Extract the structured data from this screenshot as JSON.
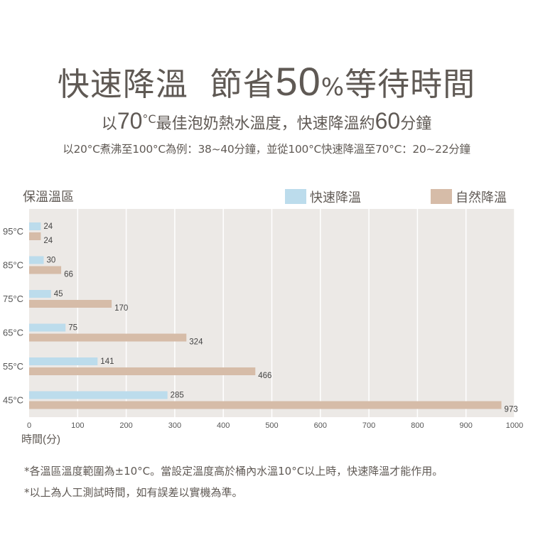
{
  "header": {
    "title_part1": "快速降溫",
    "title_part2": "節省",
    "title_num": "50",
    "title_pct": "%",
    "title_part3": "等待時間",
    "sub1_a": "以",
    "sub1_num1": "70",
    "sub1_deg": "°C",
    "sub1_b": "最佳泡奶熱水溫度，快速降溫約",
    "sub1_num2": "60",
    "sub1_c": "分鐘",
    "sub2": "以20°C煮沸至100°C為例：38~40分鐘，並從100°C快速降溫至70°C：20~22分鐘"
  },
  "chart_data": {
    "type": "bar",
    "orientation": "horizontal",
    "title": "保溫溫區",
    "xlabel": "時間(分)",
    "ylabel": "保溫溫區",
    "categories": [
      "95°C",
      "85°C",
      "75°C",
      "65°C",
      "55°C",
      "45°C"
    ],
    "series": [
      {
        "name": "快速降溫",
        "color": "#bcdcec",
        "values": [
          24,
          30,
          45,
          75,
          141,
          285
        ]
      },
      {
        "name": "自然降溫",
        "color": "#d6bca8",
        "values": [
          24,
          66,
          170,
          324,
          466,
          973
        ]
      }
    ],
    "xlim": [
      0,
      1000
    ],
    "xticks": [
      "0",
      "100",
      "200",
      "300",
      "400",
      "500",
      "600",
      "700",
      "800",
      "900",
      "1000"
    ],
    "grid": true,
    "legend": "top-right",
    "plot_bg": "#ece9e6"
  },
  "notes": [
    "*各溫區溫度範圍為±10°C。當設定溫度高於桶內水溫10°C以上時，快速降溫才能作用。",
    "*以上為人工測試時間，如有誤差以實機為準。"
  ]
}
